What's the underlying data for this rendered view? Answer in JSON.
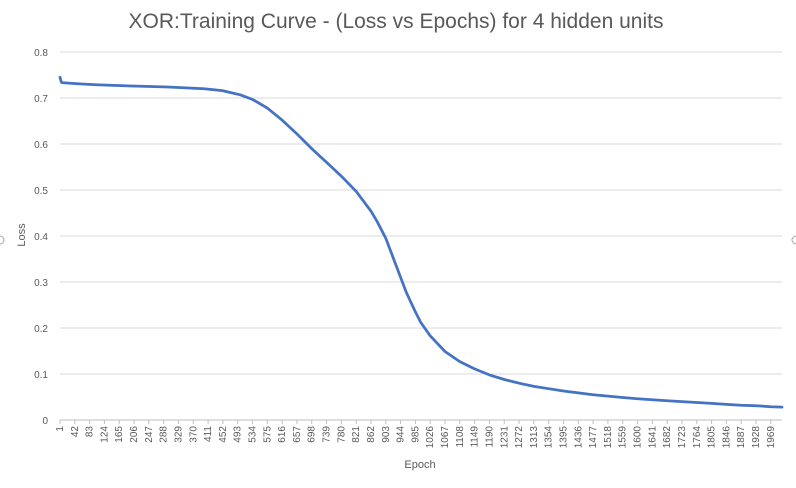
{
  "chart_data": {
    "type": "line",
    "title": "XOR:Training Curve - (Loss vs Epochs) for 4 hidden units",
    "xlabel": "Epoch",
    "ylabel": "Loss",
    "ylim": [
      0,
      0.8
    ],
    "yticks": [
      "0",
      "0.1",
      "0.2",
      "0.3",
      "0.4",
      "0.5",
      "0.6",
      "0.7",
      "0.8"
    ],
    "xlim": [
      1,
      2000
    ],
    "xticks": [
      "1",
      "42",
      "83",
      "124",
      "165",
      "206",
      "247",
      "288",
      "329",
      "370",
      "411",
      "452",
      "493",
      "534",
      "575",
      "616",
      "657",
      "698",
      "739",
      "780",
      "821",
      "862",
      "903",
      "944",
      "985",
      "1026",
      "1067",
      "1108",
      "1149",
      "1190",
      "1231",
      "1272",
      "1313",
      "1354",
      "1395",
      "1436",
      "1477",
      "1518",
      "1559",
      "1600",
      "1641",
      "1682",
      "1723",
      "1764",
      "1805",
      "1846",
      "1887",
      "1928",
      "1969"
    ],
    "grid": true,
    "series_color": "#4472c4",
    "series": [
      {
        "x": [
          1,
          5,
          10,
          50,
          100,
          200,
          300,
          350,
          400,
          450,
          500,
          534,
          575,
          616,
          657,
          698,
          739,
          780,
          821,
          862,
          880,
          903,
          920,
          944,
          960,
          985,
          1000,
          1026,
          1067,
          1108,
          1149,
          1190,
          1231,
          1272,
          1313,
          1354,
          1395,
          1436,
          1477,
          1518,
          1559,
          1600,
          1641,
          1682,
          1723,
          1764,
          1805,
          1846,
          1887,
          1928,
          1969,
          2000
        ],
        "y": [
          0.745,
          0.734,
          0.733,
          0.731,
          0.729,
          0.726,
          0.724,
          0.722,
          0.72,
          0.716,
          0.707,
          0.697,
          0.678,
          0.652,
          0.622,
          0.59,
          0.56,
          0.53,
          0.497,
          0.454,
          0.43,
          0.395,
          0.36,
          0.31,
          0.277,
          0.235,
          0.212,
          0.183,
          0.149,
          0.127,
          0.111,
          0.098,
          0.088,
          0.08,
          0.073,
          0.068,
          0.063,
          0.059,
          0.055,
          0.052,
          0.049,
          0.046,
          0.044,
          0.042,
          0.04,
          0.038,
          0.036,
          0.034,
          0.032,
          0.031,
          0.029,
          0.028
        ]
      }
    ]
  }
}
